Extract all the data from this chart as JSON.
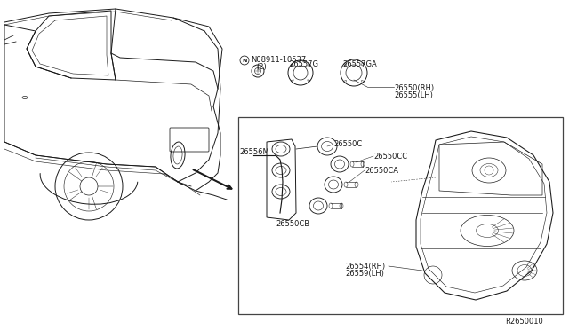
{
  "bg_color": "#ffffff",
  "line_color": "#1a1a1a",
  "text_color": "#1a1a1a",
  "part_number_ref": "R2650010",
  "figsize": [
    6.4,
    3.72
  ],
  "dpi": 100,
  "labels": {
    "bolt": "N08911-10537",
    "bolt_qty": "(2)",
    "bulb1": "26557G",
    "bulb2": "26557GA",
    "lamp_rh": "26550(RH)",
    "lamp_lh": "26555(LH)",
    "socket_m": "26556M",
    "socket_c": "26550C",
    "socket_cc": "26550CC",
    "socket_ca": "26550CA",
    "socket_cb": "26550CB",
    "lamp_rh2": "26554(RH)",
    "lamp_lh2": "26559(LH)"
  }
}
